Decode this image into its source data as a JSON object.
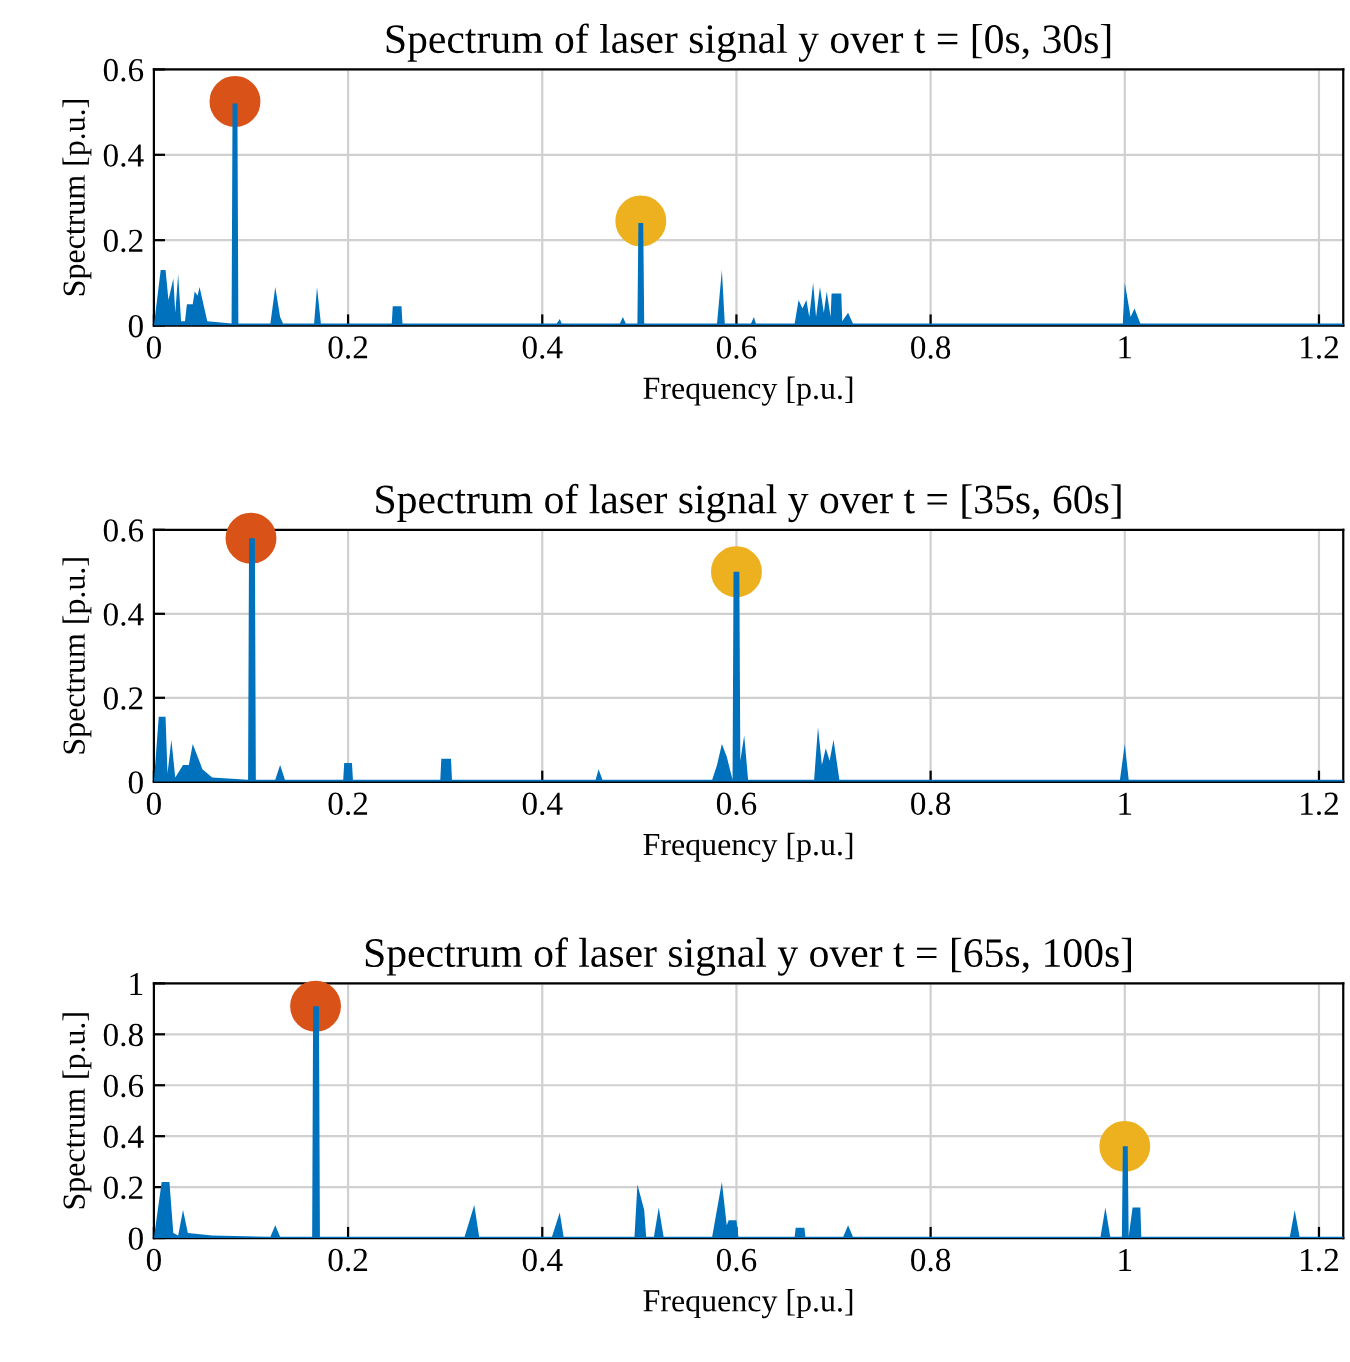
{
  "chart_data": [
    {
      "type": "area",
      "title": "Spectrum of laser signal y over t = [0s, 30s]",
      "xlabel": "Frequency [p.u.]",
      "ylabel": "Spectrum [p.u.]",
      "xlim": [
        0,
        1.225
      ],
      "ylim": [
        0,
        0.6
      ],
      "xticks": [
        0,
        0.2,
        0.4,
        0.6,
        0.8,
        1,
        1.2
      ],
      "yticks": [
        0,
        0.2,
        0.4,
        0.6
      ],
      "grid": true,
      "series": [
        {
          "color": "#0072bd",
          "x": [
            0,
            0.007,
            0.012,
            0.015,
            0.02,
            0.022,
            0.025,
            0.028,
            0.032,
            0.034,
            0.04,
            0.042,
            0.045,
            0.047,
            0.052,
            0.055,
            0.08,
            0.081,
            0.086,
            0.087,
            0.12,
            0.125,
            0.13,
            0.133,
            0.165,
            0.168,
            0.172,
            0.245,
            0.246,
            0.255,
            0.256,
            0.415,
            0.418,
            0.42,
            0.48,
            0.483,
            0.486,
            0.498,
            0.499,
            0.504,
            0.505,
            0.58,
            0.585,
            0.588,
            0.615,
            0.618,
            0.62,
            0.66,
            0.664,
            0.668,
            0.672,
            0.675,
            0.679,
            0.682,
            0.686,
            0.69,
            0.693,
            0.697,
            0.698,
            0.708,
            0.709,
            0.715,
            0.72,
            0.998,
            1.0,
            1.006,
            1.01,
            1.016,
            1.225
          ],
          "values": [
            0,
            0.13,
            0.13,
            0.06,
            0.11,
            0.03,
            0.12,
            0.01,
            0.01,
            0.05,
            0.05,
            0.08,
            0.07,
            0.09,
            0.04,
            0.01,
            0.005,
            0.52,
            0.52,
            0.005,
            0.005,
            0.09,
            0.02,
            0.005,
            0.005,
            0.09,
            0.005,
            0.005,
            0.045,
            0.045,
            0.005,
            0.005,
            0.015,
            0.005,
            0.005,
            0.02,
            0.005,
            0.005,
            0.24,
            0.24,
            0.005,
            0.005,
            0.13,
            0.005,
            0.005,
            0.02,
            0.005,
            0.005,
            0.06,
            0.04,
            0.06,
            0.02,
            0.1,
            0.02,
            0.09,
            0.03,
            0.08,
            0.02,
            0.075,
            0.075,
            0.01,
            0.03,
            0.005,
            0.005,
            0.1,
            0.02,
            0.04,
            0.005,
            0.005
          ]
        },
        {
          "type": "scatter",
          "marker": "circle",
          "color": "#d95319",
          "x": [
            0.0835
          ],
          "values": [
            0.525
          ]
        },
        {
          "type": "scatter",
          "marker": "circle",
          "color": "#edb120",
          "x": [
            0.5015
          ],
          "values": [
            0.245
          ]
        }
      ]
    },
    {
      "type": "area",
      "title": "Spectrum of laser signal y over t = [35s, 60s]",
      "xlabel": "Frequency [p.u.]",
      "ylabel": "Spectrum [p.u.]",
      "xlim": [
        0,
        1.225
      ],
      "ylim": [
        0,
        0.6
      ],
      "xticks": [
        0,
        0.2,
        0.4,
        0.6,
        0.8,
        1,
        1.2
      ],
      "yticks": [
        0,
        0.2,
        0.4,
        0.6
      ],
      "grid": true,
      "series": [
        {
          "color": "#0072bd",
          "x": [
            0,
            0.005,
            0.012,
            0.014,
            0.018,
            0.022,
            0.03,
            0.036,
            0.04,
            0.05,
            0.06,
            0.097,
            0.098,
            0.104,
            0.105,
            0.125,
            0.13,
            0.135,
            0.195,
            0.196,
            0.204,
            0.205,
            0.295,
            0.296,
            0.306,
            0.307,
            0.455,
            0.458,
            0.462,
            0.575,
            0.58,
            0.585,
            0.59,
            0.596,
            0.597,
            0.603,
            0.604,
            0.608,
            0.612,
            0.68,
            0.684,
            0.688,
            0.692,
            0.696,
            0.7,
            0.706,
            0.995,
            1.0,
            1.004,
            1.225
          ],
          "values": [
            0,
            0.155,
            0.155,
            0.02,
            0.1,
            0.01,
            0.04,
            0.04,
            0.09,
            0.03,
            0.01,
            0.005,
            0.58,
            0.58,
            0.005,
            0.005,
            0.04,
            0.005,
            0.005,
            0.045,
            0.045,
            0.005,
            0.005,
            0.055,
            0.055,
            0.005,
            0.005,
            0.03,
            0.005,
            0.005,
            0.04,
            0.09,
            0.06,
            0.005,
            0.5,
            0.5,
            0.05,
            0.11,
            0.005,
            0.005,
            0.13,
            0.04,
            0.08,
            0.05,
            0.1,
            0.005,
            0.005,
            0.09,
            0.005,
            0.005
          ]
        },
        {
          "type": "scatter",
          "marker": "circle",
          "color": "#d95319",
          "x": [
            0.1
          ],
          "values": [
            0.58
          ]
        },
        {
          "type": "scatter",
          "marker": "circle",
          "color": "#edb120",
          "x": [
            0.6
          ],
          "values": [
            0.5
          ]
        }
      ]
    },
    {
      "type": "area",
      "title": "Spectrum of laser signal y over t = [65s, 100s]",
      "xlabel": "Frequency [p.u.]",
      "ylabel": "Spectrum [p.u.]",
      "xlim": [
        0,
        1.225
      ],
      "ylim": [
        0,
        1
      ],
      "xticks": [
        0,
        0.2,
        0.4,
        0.6,
        0.8,
        1,
        1.2
      ],
      "yticks": [
        0,
        0.2,
        0.4,
        0.6,
        0.8,
        1
      ],
      "grid": true,
      "series": [
        {
          "color": "#0072bd",
          "x": [
            0,
            0.008,
            0.016,
            0.02,
            0.025,
            0.03,
            0.035,
            0.06,
            0.12,
            0.125,
            0.13,
            0.163,
            0.164,
            0.17,
            0.171,
            0.32,
            0.33,
            0.335,
            0.41,
            0.418,
            0.422,
            0.495,
            0.498,
            0.505,
            0.507,
            0.515,
            0.52,
            0.525,
            0.575,
            0.585,
            0.59,
            0.592,
            0.6,
            0.602,
            0.66,
            0.661,
            0.67,
            0.671,
            0.71,
            0.715,
            0.72,
            0.975,
            0.98,
            0.985,
            0.997,
            0.998,
            1.003,
            1.004,
            1.008,
            1.016,
            1.017,
            1.17,
            1.175,
            1.18,
            1.225
          ],
          "values": [
            0,
            0.22,
            0.22,
            0.02,
            0.01,
            0.11,
            0.02,
            0.01,
            0.005,
            0.05,
            0.005,
            0.005,
            0.91,
            0.91,
            0.005,
            0.005,
            0.13,
            0.005,
            0.005,
            0.1,
            0.005,
            0.005,
            0.21,
            0.11,
            0.005,
            0.005,
            0.12,
            0.005,
            0.005,
            0.22,
            0.05,
            0.07,
            0.07,
            0.005,
            0.005,
            0.04,
            0.04,
            0.005,
            0.005,
            0.05,
            0.005,
            0.005,
            0.12,
            0.005,
            0.005,
            0.36,
            0.36,
            0.005,
            0.12,
            0.12,
            0.005,
            0.005,
            0.11,
            0.005,
            0.005
          ]
        },
        {
          "type": "scatter",
          "marker": "circle",
          "color": "#d95319",
          "x": [
            0.1665
          ],
          "values": [
            0.91
          ]
        },
        {
          "type": "scatter",
          "marker": "circle",
          "color": "#edb120",
          "x": [
            1.0
          ],
          "values": [
            0.36
          ]
        }
      ]
    }
  ]
}
